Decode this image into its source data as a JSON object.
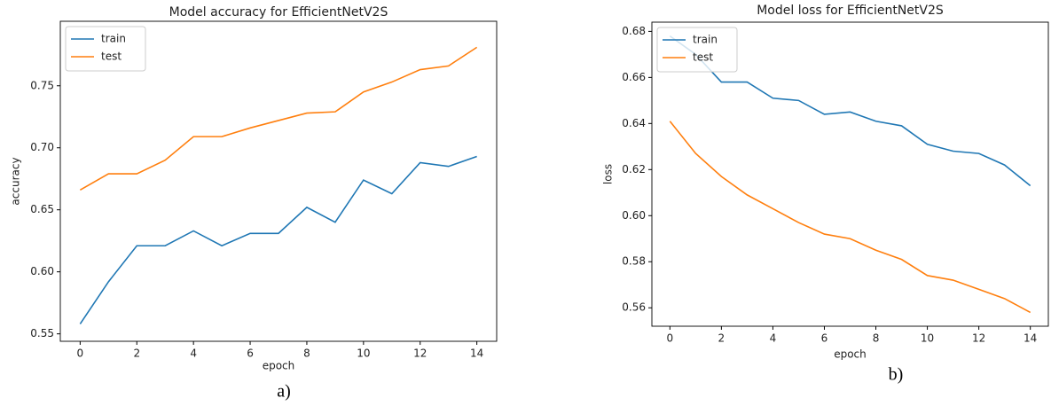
{
  "chart_data": [
    {
      "type": "line",
      "title": "Model accuracy for EfficientNetV2S",
      "xlabel": "epoch",
      "ylabel": "accuracy",
      "caption": "a)",
      "x": [
        0,
        1,
        2,
        3,
        4,
        5,
        6,
        7,
        8,
        9,
        10,
        11,
        12,
        13,
        14
      ],
      "series": [
        {
          "name": "train",
          "color": "#1f77b4",
          "values": [
            0.558,
            0.592,
            0.621,
            0.621,
            0.633,
            0.621,
            0.631,
            0.631,
            0.652,
            0.64,
            0.674,
            0.663,
            0.688,
            0.685,
            0.693
          ]
        },
        {
          "name": "test",
          "color": "#ff7f0e",
          "values": [
            0.666,
            0.679,
            0.679,
            0.69,
            0.709,
            0.709,
            0.716,
            0.722,
            0.728,
            0.729,
            0.745,
            0.753,
            0.763,
            0.766,
            0.781
          ]
        }
      ],
      "xlim": [
        -0.7,
        14.7
      ],
      "xticks": [
        0,
        2,
        4,
        6,
        8,
        10,
        12,
        14
      ],
      "ylim": [
        0.544,
        0.802
      ],
      "yticks": [
        0.55,
        {
          "value": 0.6,
          "label": "0.60"
        },
        0.65,
        {
          "value": 0.7,
          "label": "0.70"
        },
        0.75
      ],
      "legend": "upper left"
    },
    {
      "type": "line",
      "title": "Model loss for EfficientNetV2S",
      "xlabel": "epoch",
      "ylabel": "loss",
      "caption": "b)",
      "x": [
        0,
        1,
        2,
        3,
        4,
        5,
        6,
        7,
        8,
        9,
        10,
        11,
        12,
        13,
        14
      ],
      "series": [
        {
          "name": "train",
          "color": "#1f77b4",
          "values": [
            0.678,
            0.67,
            0.658,
            0.658,
            0.651,
            0.65,
            0.644,
            0.645,
            0.641,
            0.639,
            0.631,
            0.628,
            0.627,
            0.622,
            0.613
          ]
        },
        {
          "name": "test",
          "color": "#ff7f0e",
          "values": [
            0.641,
            0.627,
            0.617,
            0.609,
            0.603,
            0.597,
            0.592,
            0.59,
            0.585,
            0.581,
            0.574,
            0.572,
            0.568,
            0.564,
            0.558
          ]
        }
      ],
      "xlim": [
        -0.7,
        14.7
      ],
      "xticks": [
        0,
        2,
        4,
        6,
        8,
        10,
        12,
        14
      ],
      "ylim": [
        0.552,
        0.684
      ],
      "yticks": [
        0.56,
        0.58,
        {
          "value": 0.6,
          "label": "0.60"
        },
        0.62,
        0.64,
        0.66,
        0.68
      ],
      "legend": "upper left"
    }
  ]
}
